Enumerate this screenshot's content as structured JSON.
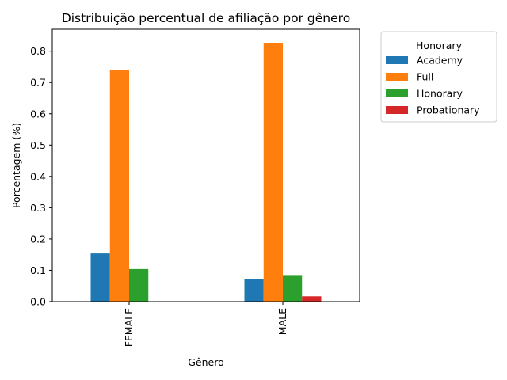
{
  "chart_data": {
    "type": "bar",
    "title": "Distribuição percentual de afiliação por gênero",
    "xlabel": "Gênero",
    "ylabel": "Porcentagem (%)",
    "categories": [
      "FEMALE",
      "MALE"
    ],
    "ylim": [
      0,
      0.87
    ],
    "yticks": [
      "0.0",
      "0.1",
      "0.2",
      "0.3",
      "0.4",
      "0.5",
      "0.6",
      "0.7",
      "0.8"
    ],
    "grid": false,
    "legend": {
      "title": "Honorary",
      "placement": "outside-right"
    },
    "series": [
      {
        "name": "Academy",
        "color": "#1f77b4",
        "values": [
          0.154,
          0.071
        ]
      },
      {
        "name": "Full",
        "color": "#ff7f0e",
        "values": [
          0.741,
          0.827
        ]
      },
      {
        "name": "Honorary",
        "color": "#2ca02c",
        "values": [
          0.104,
          0.085
        ]
      },
      {
        "name": "Probationary",
        "color": "#d62728",
        "values": [
          0.0,
          0.017
        ]
      }
    ]
  }
}
